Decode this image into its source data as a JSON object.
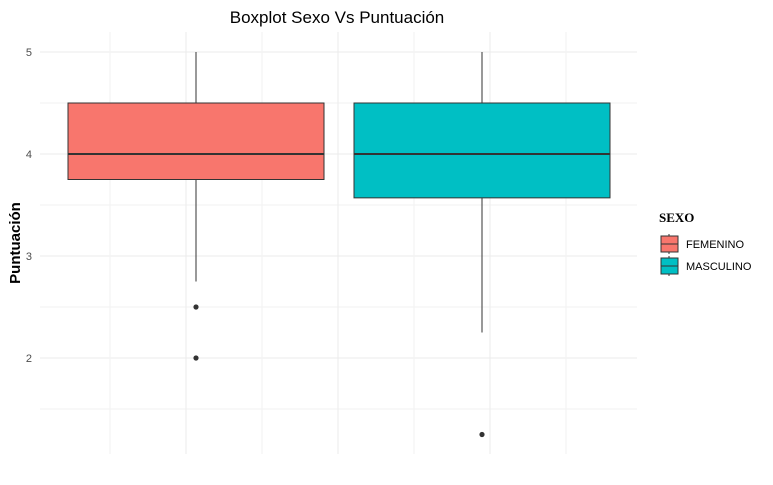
{
  "chart_data": {
    "type": "boxplot",
    "title": "Boxplot Sexo Vs Puntuación",
    "xlabel": "",
    "ylabel": "Puntuación",
    "ylim": [
      1.1,
      5.2
    ],
    "yticks": [
      "2",
      "3",
      "4",
      "5"
    ],
    "grid": true,
    "legend": {
      "title": "SEXO",
      "placement": "right"
    },
    "series": [
      {
        "name": "FEMENINO",
        "color": "#F8766D",
        "whisker_low": 2.75,
        "q1": 3.75,
        "median": 4.0,
        "q3": 4.5,
        "whisker_high": 5.0,
        "outliers": [
          2.5,
          2.0
        ]
      },
      {
        "name": "MASCULINO",
        "color": "#00BFC4",
        "whisker_low": 2.25,
        "q1": 3.57,
        "median": 4.0,
        "q3": 4.5,
        "whisker_high": 5.0,
        "outliers": [
          1.25
        ]
      }
    ]
  }
}
